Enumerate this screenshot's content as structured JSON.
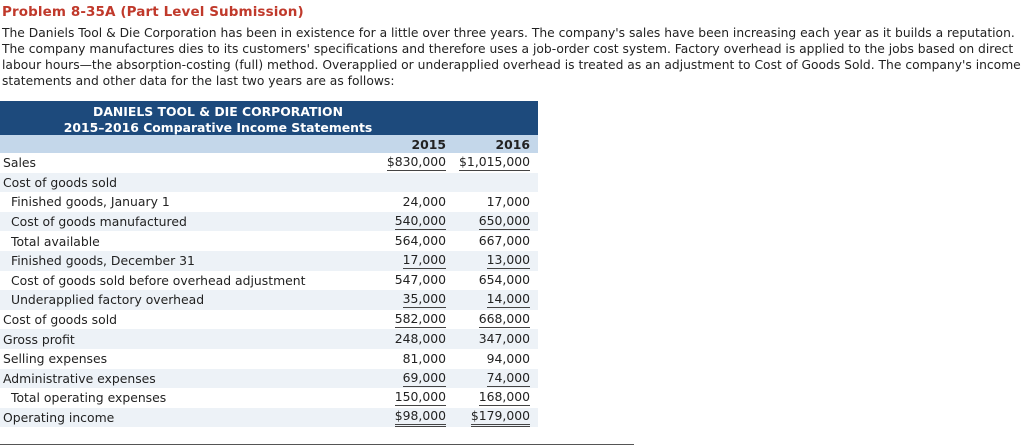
{
  "problem_title": "Problem 8-35A (Part Level Submission)",
  "intro_lines": [
    "The Daniels Tool & Die Corporation has been in existence for a little over three years. The company's sales have been increasing each year as it builds a reputation.",
    "The company manufactures dies to its customers' specifications and therefore uses a job-order cost system. Factory overhead is applied to the jobs based on direct",
    "labour hours—the absorption-costing (full) method. Overapplied or underapplied overhead is treated as an adjustment to Cost of Goods Sold. The company's income",
    "statements and other data for the last two years are as follows:"
  ],
  "statement": {
    "company": "DANIELS TOOL & DIE CORPORATION",
    "subtitle": "2015–2016 Comparative Income Statements",
    "year_1": "2015",
    "year_2": "2016",
    "rows": [
      {
        "label": "Sales",
        "v2015": "$830,000",
        "v2016": "$1,015,000"
      },
      {
        "label": "Cost of goods sold",
        "v2015": "",
        "v2016": ""
      },
      {
        "label": "Finished goods, January 1",
        "v2015": "24,000",
        "v2016": "17,000"
      },
      {
        "label": "Cost of goods manufactured",
        "v2015": "540,000",
        "v2016": "650,000"
      },
      {
        "label": "Total available",
        "v2015": "564,000",
        "v2016": "667,000"
      },
      {
        "label": "Finished goods, December 31",
        "v2015": "17,000",
        "v2016": "13,000"
      },
      {
        "label": "Cost of goods sold before overhead adjustment",
        "v2015": "547,000",
        "v2016": "654,000"
      },
      {
        "label": "Underapplied factory overhead",
        "v2015": "35,000",
        "v2016": "14,000"
      },
      {
        "label": "Cost of goods sold",
        "v2015": "582,000",
        "v2016": "668,000"
      },
      {
        "label": "Gross profit",
        "v2015": "248,000",
        "v2016": "347,000"
      },
      {
        "label": "Selling expenses",
        "v2015": "81,000",
        "v2016": "94,000"
      },
      {
        "label": "Administrative expenses",
        "v2015": "69,000",
        "v2016": "74,000"
      },
      {
        "label": "Total operating expenses",
        "v2015": "150,000",
        "v2016": "168,000"
      },
      {
        "label": "Operating income",
        "v2015": "$98,000",
        "v2016": "$179,000"
      }
    ]
  }
}
